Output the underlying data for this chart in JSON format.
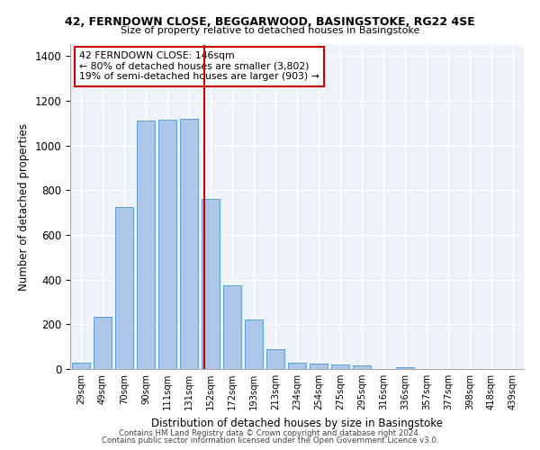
{
  "title1": "42, FERNDOWN CLOSE, BEGGARWOOD, BASINGSTOKE, RG22 4SE",
  "title2": "Size of property relative to detached houses in Basingstoke",
  "xlabel": "Distribution of detached houses by size in Basingstoke",
  "ylabel": "Number of detached properties",
  "categories": [
    "29sqm",
    "49sqm",
    "70sqm",
    "90sqm",
    "111sqm",
    "131sqm",
    "152sqm",
    "172sqm",
    "193sqm",
    "213sqm",
    "234sqm",
    "254sqm",
    "275sqm",
    "295sqm",
    "316sqm",
    "336sqm",
    "357sqm",
    "377sqm",
    "398sqm",
    "418sqm",
    "439sqm"
  ],
  "values": [
    30,
    235,
    725,
    1110,
    1115,
    1120,
    760,
    375,
    220,
    90,
    30,
    25,
    20,
    15,
    0,
    10,
    0,
    0,
    0,
    0,
    0
  ],
  "bar_color": "#aec6e8",
  "bar_edge_color": "#5a9fd4",
  "property_line_label": "42 FERNDOWN CLOSE: 146sqm",
  "annotation_line1": "← 80% of detached houses are smaller (3,802)",
  "annotation_line2": "19% of semi-detached houses are larger (903) →",
  "vline_color": "#cc0000",
  "ylim": [
    0,
    1450
  ],
  "yticks": [
    0,
    200,
    400,
    600,
    800,
    1000,
    1200,
    1400
  ],
  "footer1": "Contains HM Land Registry data © Crown copyright and database right 2024.",
  "footer2": "Contains public sector information licensed under the Open Government Licence v3.0.",
  "bg_color": "#eef3fa",
  "fig_bg_color": "#ffffff"
}
